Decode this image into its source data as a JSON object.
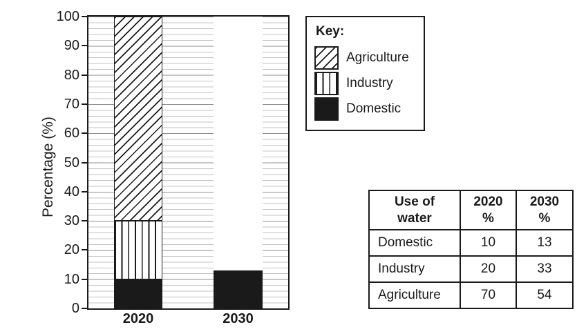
{
  "chart_data": {
    "type": "bar",
    "stacked": true,
    "title": "",
    "xlabel": "",
    "ylabel": "Percentage (%)",
    "ylim": [
      0,
      100
    ],
    "ytick_step": 10,
    "grid": "horizontal, minor every 2, major every 10",
    "legend_position": "top-right box",
    "categories": [
      "2020",
      "2030"
    ],
    "series": [
      {
        "name": "Domestic",
        "pattern": "solid-black",
        "values": [
          10,
          13
        ],
        "shown_on_chart": [
          true,
          true
        ]
      },
      {
        "name": "Industry",
        "pattern": "vertical-lines",
        "values": [
          20,
          33
        ],
        "shown_on_chart": [
          true,
          false
        ]
      },
      {
        "name": "Agriculture",
        "pattern": "diagonal-hatch",
        "values": [
          70,
          54
        ],
        "shown_on_chart": [
          true,
          false
        ]
      }
    ],
    "note": "2030 bar is incomplete: only the Domestic segment (13%) is drawn"
  },
  "axis": {
    "yticks": [
      0,
      10,
      20,
      30,
      40,
      50,
      60,
      70,
      80,
      90,
      100
    ]
  },
  "legend": {
    "title": "Key:",
    "items": [
      {
        "label": "Agriculture",
        "pattern": "diagonal-hatch"
      },
      {
        "label": "Industry",
        "pattern": "vertical-lines"
      },
      {
        "label": "Domestic",
        "pattern": "solid-black"
      }
    ]
  },
  "table": {
    "headers": [
      "Use of\nwater",
      "2020\n%",
      "2030\n%"
    ],
    "rows": [
      [
        "Domestic",
        "10",
        "13"
      ],
      [
        "Industry",
        "20",
        "33"
      ],
      [
        "Agriculture",
        "70",
        "54"
      ]
    ]
  },
  "colors": {
    "ink": "#1a1a1a",
    "grid_minor": "#c3c3c3",
    "grid_major": "#8f8f8f",
    "background": "#ffffff"
  }
}
